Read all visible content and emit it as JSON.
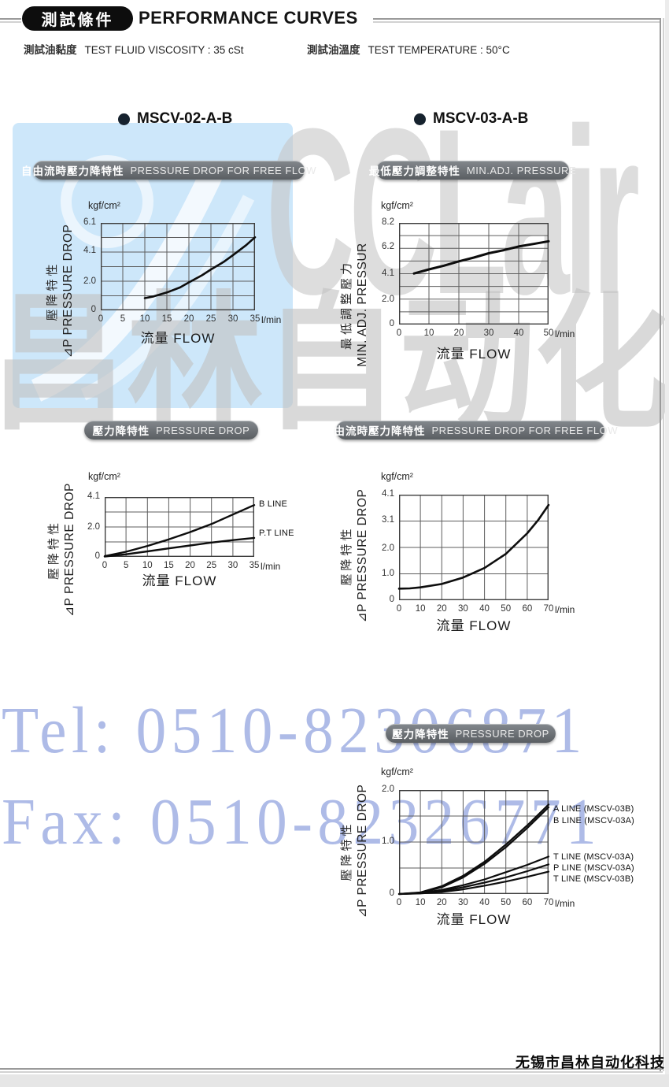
{
  "header": {
    "badge": "測試條件",
    "title": "PERFORMANCE CURVES"
  },
  "conditions": [
    {
      "cjk": "測試油黏度",
      "en": "TEST FLUID VISCOSITY : 35 cSt"
    },
    {
      "cjk": "測試油溫度",
      "en": "TEST TEMPERATURE : 50°C"
    }
  ],
  "models": [
    {
      "label": "MSCV-02-A-B"
    },
    {
      "label": "MSCV-03-A-B"
    }
  ],
  "watermarks": {
    "brand": "CCLair",
    "cjk": "昌林自动化",
    "tel": "Tel: 0510-82306871",
    "fax": "Fax: 0510-82326771",
    "phone_color": "#aebbe7",
    "blue_block_color": "#cde7fa"
  },
  "footer": "无锡市昌林自动化科技",
  "chart_data": [
    {
      "type": "line",
      "pill_cjk": "自由流時壓力降特性",
      "pill_en": "PRESSURE DROP  FOR FREE FLOW",
      "unit": "kgf/cm²",
      "ylabel_cjk": "壓降特性",
      "ylabel_en": "⊿P PRESSURE DROP",
      "xlabel": "流量 FLOW",
      "x_unit": "l/min",
      "xlim": [
        0,
        35
      ],
      "ylim": [
        0,
        6.1
      ],
      "grid_rows": 6,
      "x_ticks": [
        0,
        5,
        10,
        15,
        20,
        25,
        30,
        35
      ],
      "y_ticks": [
        {
          "v": 0,
          "t": "0"
        },
        {
          "v": 2.0,
          "t": "2.0"
        },
        {
          "v": 4.1,
          "t": "4.1"
        },
        {
          "v": 6.1,
          "t": "6.1"
        }
      ],
      "series": [
        {
          "name": "",
          "width": 2.6,
          "points": [
            [
              10,
              0.85
            ],
            [
              12,
              0.97
            ],
            [
              15,
              1.25
            ],
            [
              18,
              1.6
            ],
            [
              20,
              1.95
            ],
            [
              23,
              2.45
            ],
            [
              25,
              2.85
            ],
            [
              28,
              3.4
            ],
            [
              30,
              3.85
            ],
            [
              33,
              4.55
            ],
            [
              35,
              5.1
            ]
          ]
        }
      ]
    },
    {
      "type": "line",
      "pill_cjk": "最低壓力調整特性",
      "pill_en": "MIN.ADJ. PRESSURE",
      "unit": "kgf/cm²",
      "ylabel_cjk": "最低調整壓力",
      "ylabel_en": "MIN. ADJ. PRESSUR",
      "xlabel": "流量 FLOW",
      "x_unit": "l/min",
      "xlim": [
        0,
        50
      ],
      "ylim": [
        0,
        8.2
      ],
      "grid_rows": 8,
      "x_ticks": [
        0,
        10,
        20,
        30,
        40,
        50
      ],
      "y_ticks": [
        {
          "v": 0,
          "t": "0"
        },
        {
          "v": 2.0,
          "t": "2.0"
        },
        {
          "v": 4.1,
          "t": "4.1"
        },
        {
          "v": 6.2,
          "t": "6.2"
        },
        {
          "v": 8.2,
          "t": "8.2"
        }
      ],
      "series": [
        {
          "name": "",
          "width": 3,
          "points": [
            [
              5,
              4.12
            ],
            [
              10,
              4.45
            ],
            [
              15,
              4.75
            ],
            [
              20,
              5.1
            ],
            [
              25,
              5.4
            ],
            [
              30,
              5.75
            ],
            [
              35,
              6.0
            ],
            [
              40,
              6.3
            ],
            [
              45,
              6.5
            ],
            [
              50,
              6.72
            ]
          ]
        }
      ]
    },
    {
      "type": "line",
      "pill_cjk": "壓力降特性",
      "pill_en": "PRESSURE DROP",
      "unit": "kgf/cm²",
      "ylabel_cjk": "壓降特性",
      "ylabel_en": "⊿P PRESSURE DROP",
      "xlabel": "流量 FLOW",
      "x_unit": "l/min",
      "xlim": [
        0,
        35
      ],
      "ylim": [
        0,
        4.1
      ],
      "grid_rows": 4,
      "x_ticks": [
        0,
        5,
        10,
        15,
        20,
        25,
        30,
        35
      ],
      "y_ticks": [
        {
          "v": 0,
          "t": "0"
        },
        {
          "v": 2.0,
          "t": "2.0"
        },
        {
          "v": 4.1,
          "t": "4.1"
        }
      ],
      "series": [
        {
          "name": "B LINE",
          "label_y": 3.62,
          "width": 2.4,
          "points": [
            [
              0,
              0.05
            ],
            [
              5,
              0.35
            ],
            [
              10,
              0.75
            ],
            [
              15,
              1.2
            ],
            [
              20,
              1.7
            ],
            [
              25,
              2.25
            ],
            [
              30,
              2.9
            ],
            [
              35,
              3.55
            ]
          ]
        },
        {
          "name": "P.T LINE",
          "label_y": 1.6,
          "width": 2.4,
          "points": [
            [
              0,
              0.02
            ],
            [
              5,
              0.18
            ],
            [
              10,
              0.38
            ],
            [
              15,
              0.58
            ],
            [
              20,
              0.78
            ],
            [
              25,
              0.98
            ],
            [
              30,
              1.15
            ],
            [
              35,
              1.3
            ]
          ]
        }
      ]
    },
    {
      "type": "line",
      "pill_cjk": "自由流時壓力降特性",
      "pill_en": "PRESSURE DROP  FOR FREE FLOW",
      "unit": "kgf/cm²",
      "ylabel_cjk": "壓降特性",
      "ylabel_en": "⊿P PRESSURE DROP",
      "xlabel": "流量 FLOW",
      "x_unit": "l/min",
      "xlim": [
        0,
        70
      ],
      "ylim": [
        0,
        4.1
      ],
      "grid_rows": 4,
      "x_ticks": [
        0,
        10,
        20,
        30,
        40,
        50,
        60,
        70
      ],
      "y_ticks": [
        {
          "v": 0,
          "t": "0"
        },
        {
          "v": 1.0,
          "t": "1.0"
        },
        {
          "v": 2.0,
          "t": "2.0"
        },
        {
          "v": 3.1,
          "t": "3.1"
        },
        {
          "v": 4.1,
          "t": "4.1"
        }
      ],
      "series": [
        {
          "name": "",
          "width": 2.6,
          "points": [
            [
              0,
              0.45
            ],
            [
              5,
              0.46
            ],
            [
              10,
              0.5
            ],
            [
              20,
              0.63
            ],
            [
              30,
              0.88
            ],
            [
              40,
              1.25
            ],
            [
              50,
              1.8
            ],
            [
              60,
              2.6
            ],
            [
              65,
              3.1
            ],
            [
              70,
              3.7
            ]
          ]
        }
      ]
    },
    {
      "type": "line",
      "pill_cjk": "壓力降特性",
      "pill_en": "PRESSURE DROP",
      "unit": "kgf/cm²",
      "ylabel_cjk": "壓降特性",
      "ylabel_en": "⊿P PRESSURE DROP",
      "xlabel": "流量 FLOW",
      "x_unit": "l/min",
      "xlim": [
        0,
        70
      ],
      "ylim": [
        0,
        2.0
      ],
      "grid_rows": 4,
      "x_ticks": [
        0,
        10,
        20,
        30,
        40,
        50,
        60,
        70
      ],
      "y_ticks": [
        {
          "v": 0,
          "t": "0"
        },
        {
          "v": 1.0,
          "t": "1.0"
        },
        {
          "v": 2.0,
          "t": "2.0"
        }
      ],
      "series": [
        {
          "name": "A LINE (MSCV-03B)",
          "label_y": 1.64,
          "width": 2.3,
          "points": [
            [
              0,
              0.0
            ],
            [
              10,
              0.03
            ],
            [
              20,
              0.15
            ],
            [
              30,
              0.35
            ],
            [
              40,
              0.62
            ],
            [
              50,
              0.95
            ],
            [
              60,
              1.32
            ],
            [
              70,
              1.72
            ]
          ]
        },
        {
          "name": "B LINE (MSCV-03A)",
          "label_y": 1.41,
          "width": 2.3,
          "points": [
            [
              0,
              0.0
            ],
            [
              10,
              0.025
            ],
            [
              20,
              0.13
            ],
            [
              30,
              0.32
            ],
            [
              40,
              0.58
            ],
            [
              50,
              0.9
            ],
            [
              60,
              1.27
            ],
            [
              70,
              1.67
            ]
          ]
        },
        {
          "name": "T LINE (MSCV-03A)",
          "label_y": 0.71,
          "width": 2.2,
          "points": [
            [
              0,
              0.0
            ],
            [
              10,
              0.02
            ],
            [
              20,
              0.08
            ],
            [
              30,
              0.17
            ],
            [
              40,
              0.28
            ],
            [
              50,
              0.42
            ],
            [
              60,
              0.56
            ],
            [
              70,
              0.72
            ]
          ]
        },
        {
          "name": "P LINE (MSCV-03A)",
          "label_y": 0.5,
          "width": 2.2,
          "points": [
            [
              0,
              0.0
            ],
            [
              10,
              0.015
            ],
            [
              20,
              0.06
            ],
            [
              30,
              0.13
            ],
            [
              40,
              0.22
            ],
            [
              50,
              0.32
            ],
            [
              60,
              0.44
            ],
            [
              70,
              0.57
            ]
          ]
        },
        {
          "name": "T LINE (MSCV-03B)",
          "label_y": 0.29,
          "width": 2.2,
          "points": [
            [
              0,
              0.0
            ],
            [
              10,
              0.01
            ],
            [
              20,
              0.04
            ],
            [
              30,
              0.09
            ],
            [
              40,
              0.16
            ],
            [
              50,
              0.24
            ],
            [
              60,
              0.33
            ],
            [
              70,
              0.43
            ]
          ]
        }
      ]
    }
  ]
}
